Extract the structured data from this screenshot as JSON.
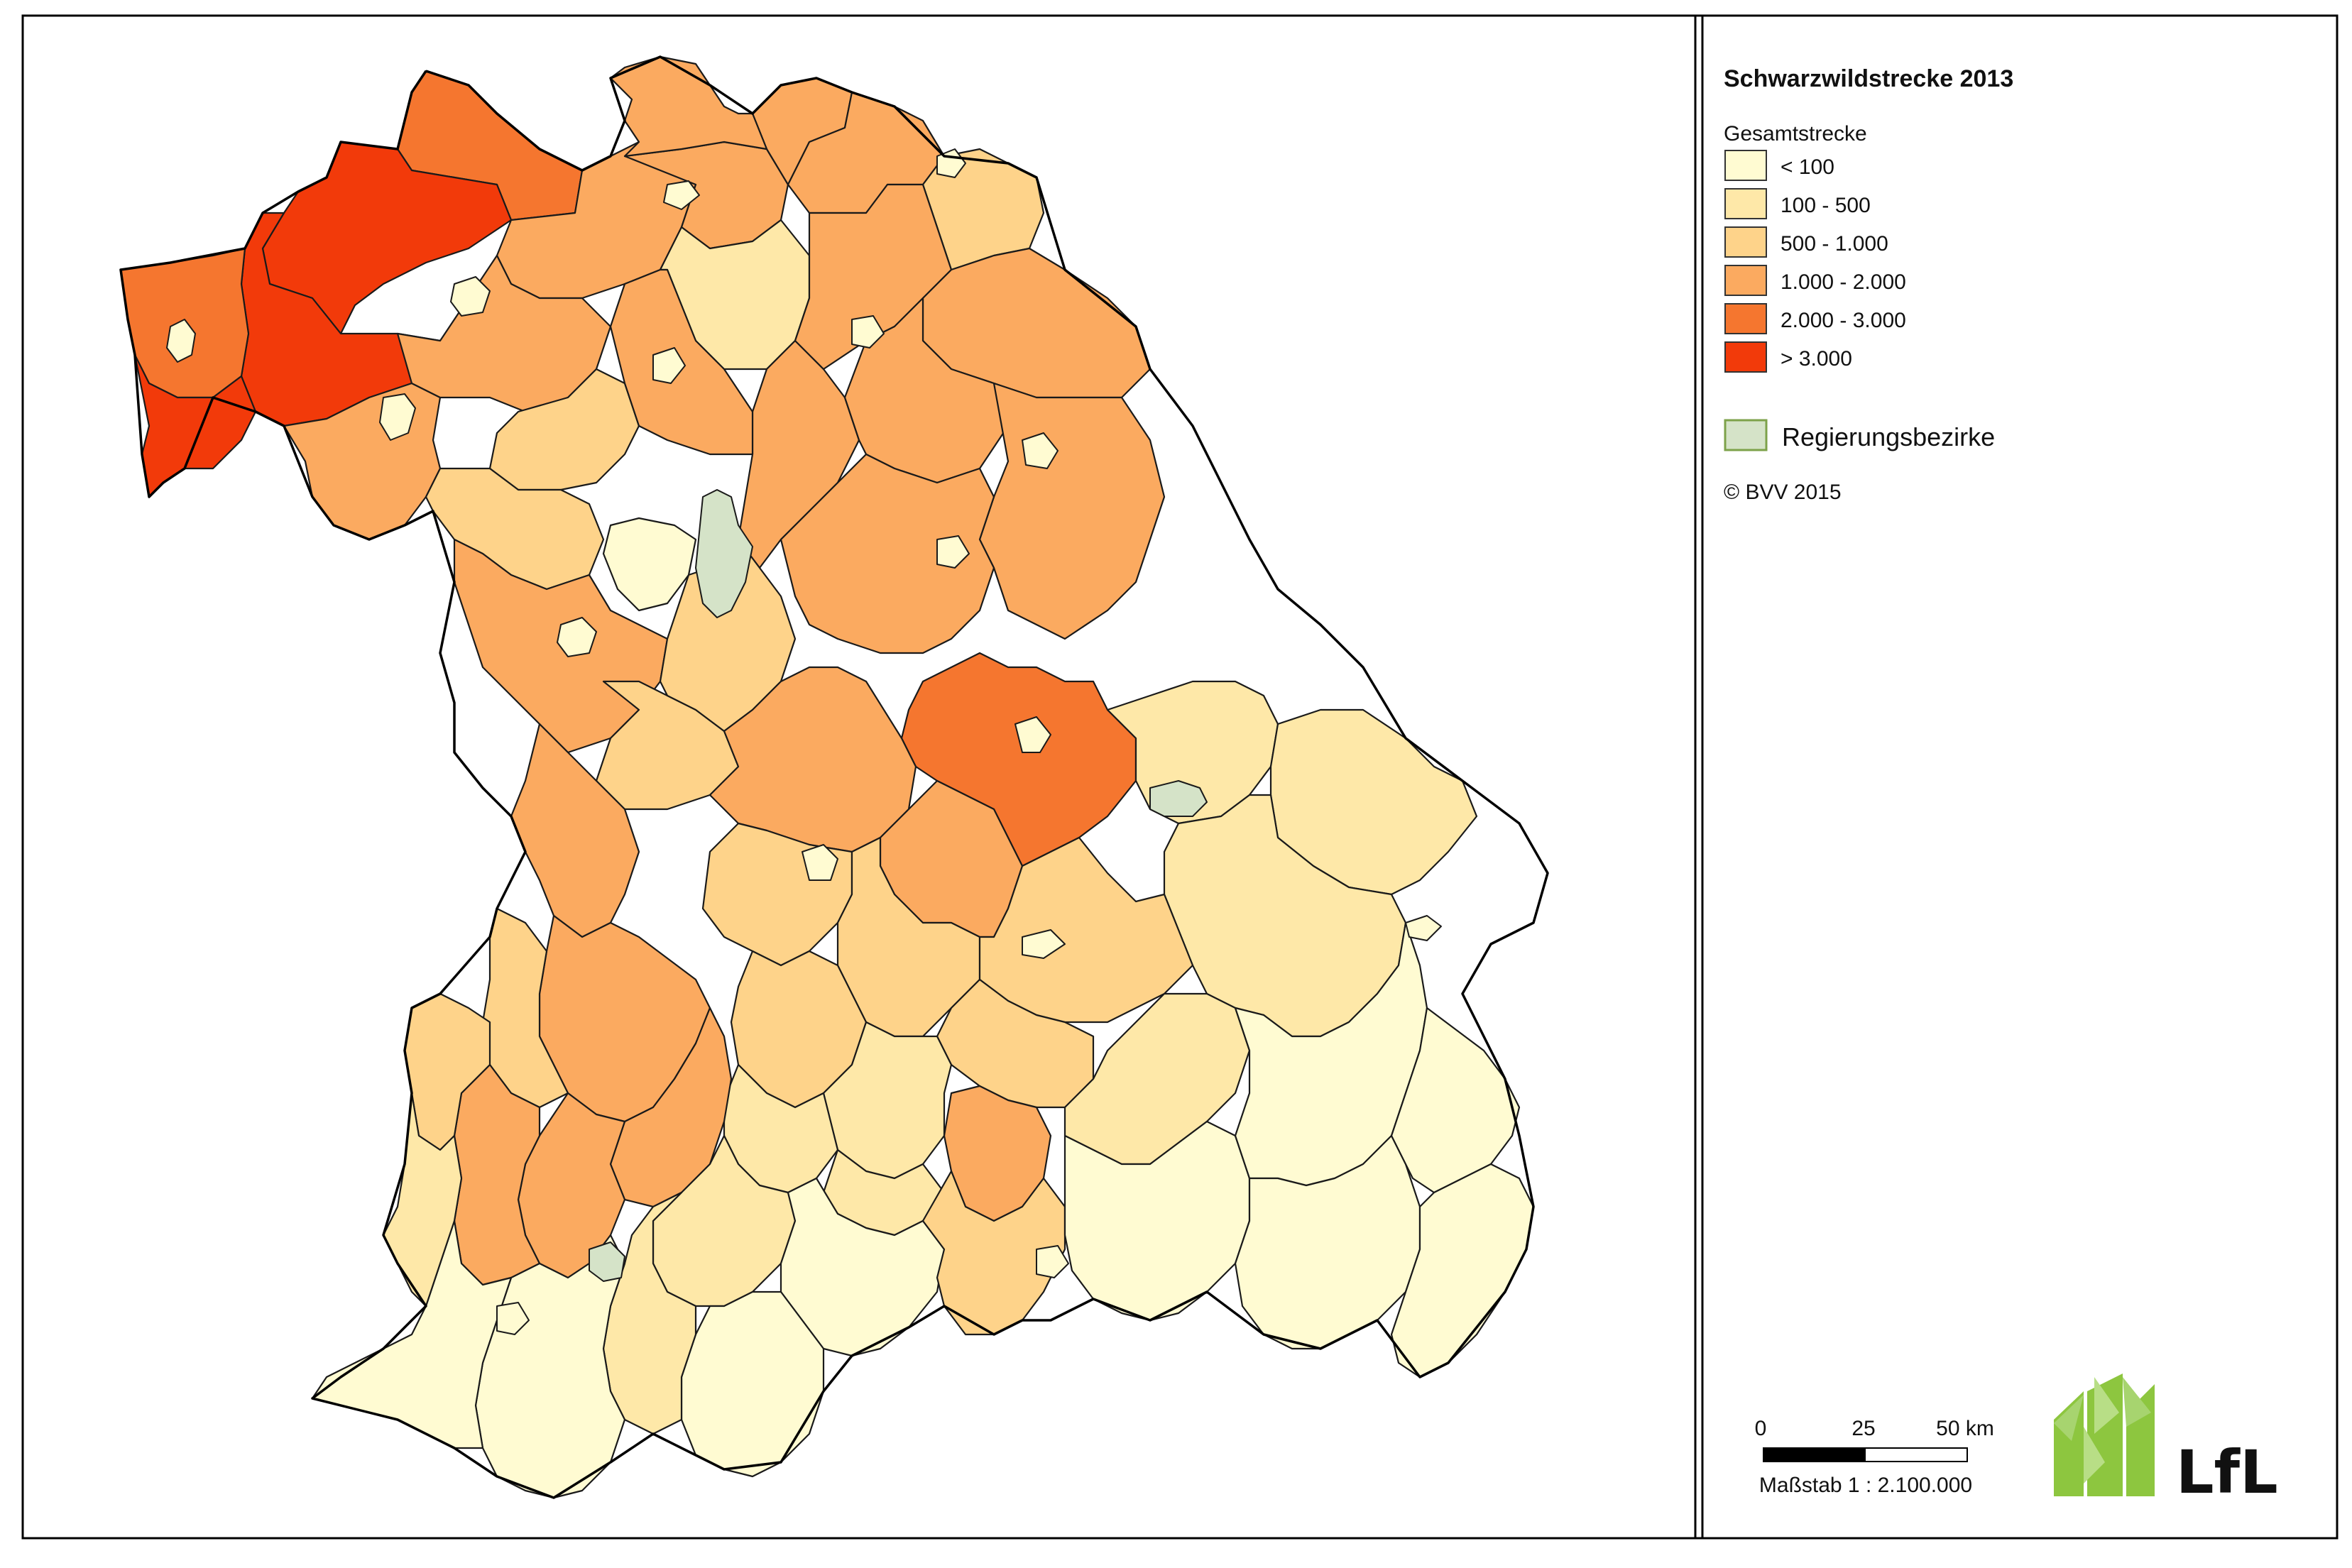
{
  "map": {
    "title": "Schwarzwildstrecke 2013",
    "legend_title": "Gesamtstrecke",
    "classes": [
      {
        "label": "< 100",
        "color": "#FFFBD2"
      },
      {
        "label": "100 - 500",
        "color": "#FEE8A8"
      },
      {
        "label": "500 - 1.000",
        "color": "#FED38A"
      },
      {
        "label": "1.000 - 2.000",
        "color": "#FBAA60"
      },
      {
        "label": "2.000 - 3.000",
        "color": "#F5762F"
      },
      {
        "label": "> 3.000",
        "color": "#F23A0A"
      }
    ],
    "region_label": "Regierungsbezirke",
    "region_color": "#D5E3C8",
    "region_border": "#7DA24A",
    "copyright": "© BVV 2015",
    "scale": {
      "tick_0": "0",
      "tick_1": "25",
      "tick_2": "50 km",
      "text": "Maßstab 1 : 2.100.000"
    },
    "logo": {
      "text": "LfL",
      "icon": "leaf-logo-icon",
      "color": "#8DC63F"
    },
    "districts": [
      {
        "id": "d-n1",
        "class": 4
      },
      {
        "id": "d-nw1",
        "class": 5
      },
      {
        "id": "d-nw2",
        "class": 5
      },
      {
        "id": "d-w1",
        "class": 4
      },
      {
        "id": "d-w2",
        "class": 5
      },
      {
        "id": "d-w3",
        "class": 3
      },
      {
        "id": "d-n2",
        "class": 3
      },
      {
        "id": "d-n3",
        "class": 3
      },
      {
        "id": "d-n4",
        "class": 3
      },
      {
        "id": "d-n5",
        "class": 3
      },
      {
        "id": "d-n6",
        "class": 3
      },
      {
        "id": "d-ne1",
        "class": 3
      },
      {
        "id": "d-ne2",
        "class": 2
      },
      {
        "id": "d-c1",
        "class": 2
      },
      {
        "id": "d-c2",
        "class": 1
      },
      {
        "id": "d-c3",
        "class": 2
      },
      {
        "id": "d-c4",
        "class": 0
      },
      {
        "id": "d-c5",
        "class": 3
      },
      {
        "id": "d-c6",
        "class": 3
      },
      {
        "id": "d-e1",
        "class": 3
      },
      {
        "id": "d-e2",
        "class": 3
      },
      {
        "id": "d-e3",
        "class": 3
      },
      {
        "id": "d-e4",
        "class": 3
      },
      {
        "id": "d-m1",
        "class": 3
      },
      {
        "id": "d-m2",
        "class": 2
      },
      {
        "id": "d-m3",
        "class": 2
      },
      {
        "id": "d-m4",
        "class": 3
      },
      {
        "id": "d-m5",
        "class": 4
      },
      {
        "id": "d-m6",
        "class": 3
      },
      {
        "id": "d-m7",
        "class": 3
      },
      {
        "id": "d-m8",
        "class": 3
      },
      {
        "id": "d-se1",
        "class": 1
      },
      {
        "id": "d-se2",
        "class": 1
      },
      {
        "id": "d-se3",
        "class": 1
      },
      {
        "id": "d-s1",
        "class": 3
      },
      {
        "id": "d-s2",
        "class": 2
      },
      {
        "id": "d-s3",
        "class": 2
      },
      {
        "id": "d-s4",
        "class": 2
      },
      {
        "id": "d-s5",
        "class": 2
      },
      {
        "id": "d-s6",
        "class": 3
      },
      {
        "id": "d-s7",
        "class": 2
      },
      {
        "id": "d-s8",
        "class": 1
      },
      {
        "id": "d-s9",
        "class": 1
      },
      {
        "id": "d-s10",
        "class": 1
      },
      {
        "id": "d-sw1",
        "class": 2
      },
      {
        "id": "d-sw2",
        "class": 3
      },
      {
        "id": "d-sw3",
        "class": 3
      },
      {
        "id": "d-sw4",
        "class": 3
      },
      {
        "id": "d-sw5",
        "class": 2
      },
      {
        "id": "d-u1",
        "class": 1
      },
      {
        "id": "d-u2",
        "class": 0
      },
      {
        "id": "d-u3",
        "class": 2
      },
      {
        "id": "d-u4",
        "class": 1
      },
      {
        "id": "d-u5",
        "class": 0
      },
      {
        "id": "d-u6",
        "class": 0
      },
      {
        "id": "d-u7",
        "class": 0
      },
      {
        "id": "d-u8",
        "class": 0
      },
      {
        "id": "d-u9",
        "class": 0
      },
      {
        "id": "d-u10",
        "class": 0
      },
      {
        "id": "d-u11",
        "class": 1
      },
      {
        "id": "d-u12",
        "class": 0
      },
      {
        "id": "d-u13",
        "class": 0
      },
      {
        "id": "d-u14",
        "class": 1
      }
    ]
  }
}
